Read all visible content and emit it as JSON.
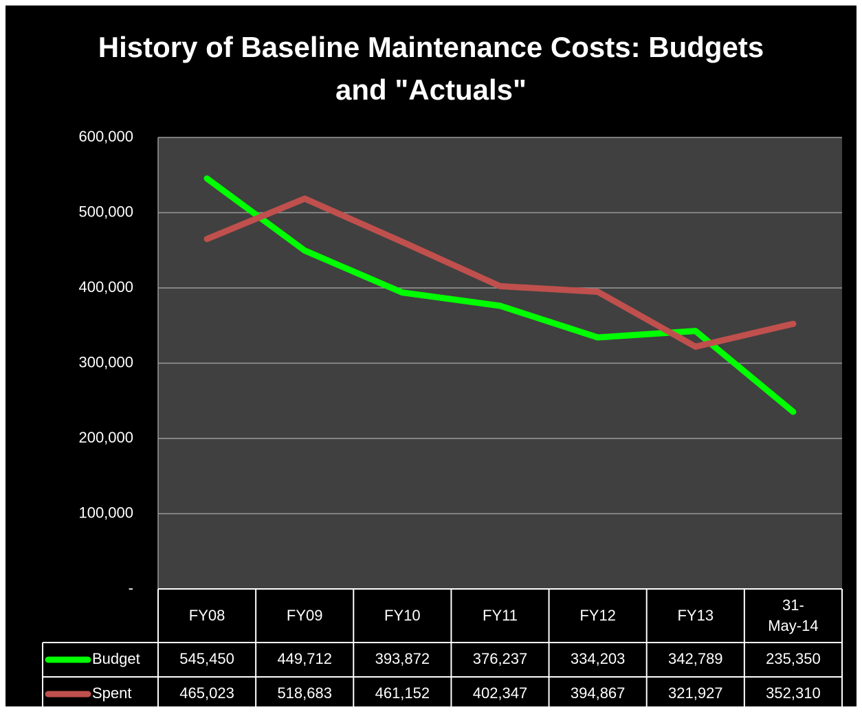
{
  "chart_data": {
    "type": "line",
    "title": "History of Baseline Maintenance Costs: Budgets and \"Actuals\"",
    "categories": [
      "FY08",
      "FY09",
      "FY10",
      "FY11",
      "FY12",
      "FY13",
      "31-May-14"
    ],
    "series": [
      {
        "name": "Budget",
        "color": "#00ff00",
        "values": [
          545450,
          449712,
          393872,
          376237,
          334203,
          342789,
          235350
        ],
        "value_labels": [
          "545,450",
          "449,712",
          "393,872",
          "376,237",
          "334,203",
          "342,789",
          "235,350"
        ]
      },
      {
        "name": "Spent",
        "color": "#c0504d",
        "values": [
          465023,
          518683,
          461152,
          402347,
          394867,
          321927,
          352310
        ],
        "value_labels": [
          "465,023",
          "518,683",
          "461,152",
          "402,347",
          "394,867",
          "321,927",
          "352,310"
        ]
      }
    ],
    "ylim": [
      0,
      600000
    ],
    "yticks": [
      {
        "value": 0,
        "label": "-"
      },
      {
        "value": 100000,
        "label": "100,000"
      },
      {
        "value": 200000,
        "label": "200,000"
      },
      {
        "value": 300000,
        "label": "300,000"
      },
      {
        "value": 400000,
        "label": "400,000"
      },
      {
        "value": 500000,
        "label": "500,000"
      },
      {
        "value": 600000,
        "label": "600,000"
      }
    ],
    "grid": true,
    "data_table": true
  }
}
